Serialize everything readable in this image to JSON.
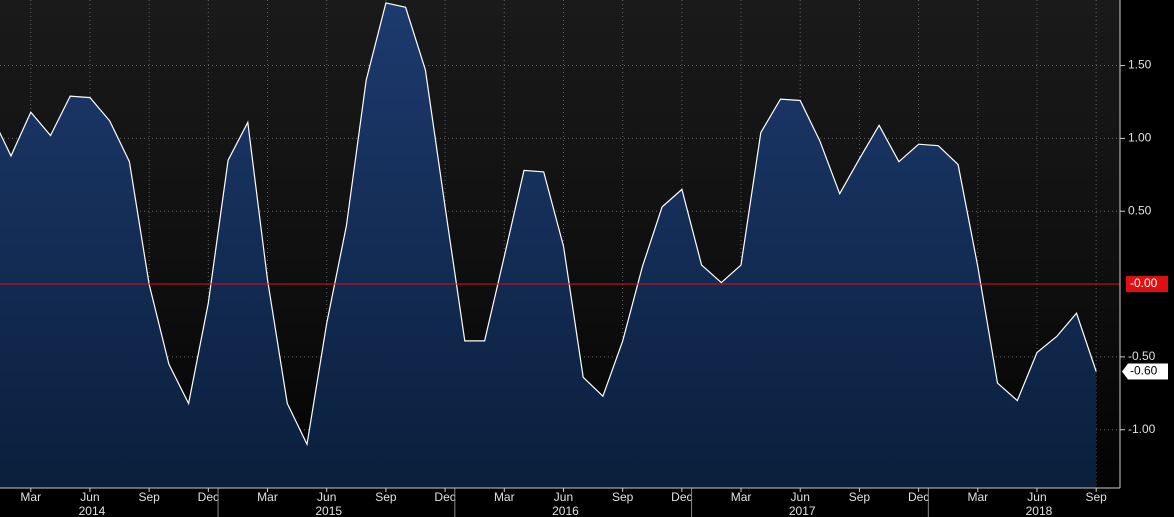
{
  "chart_data": {
    "type": "area",
    "categories": [
      null,
      null,
      "Mar",
      null,
      null,
      "Jun",
      null,
      null,
      "Sep",
      null,
      null,
      "Dec",
      null,
      null,
      "Mar",
      null,
      null,
      "Jun",
      null,
      null,
      "Sep",
      null,
      null,
      "Dec",
      null,
      null,
      "Mar",
      null,
      null,
      "Jun",
      null,
      null,
      "Sep",
      null,
      null,
      "Dec",
      null,
      null,
      "Mar",
      null,
      null,
      "Jun",
      null,
      null,
      "Sep",
      null,
      null,
      "Dec",
      null,
      null,
      "Mar",
      null,
      null,
      "Jun",
      null,
      null,
      "Sep"
    ],
    "years": [
      "2014",
      "2015",
      "2016",
      "2017",
      "2018"
    ],
    "values": [
      1.16,
      0.88,
      1.18,
      1.02,
      1.29,
      1.28,
      1.12,
      0.84,
      0.0,
      -0.55,
      -0.82,
      -0.13,
      0.85,
      1.11,
      0.03,
      -0.82,
      -1.1,
      -0.27,
      0.4,
      1.4,
      1.93,
      1.9,
      1.47,
      0.53,
      -0.39,
      -0.39,
      0.19,
      0.78,
      0.77,
      0.26,
      -0.64,
      -0.77,
      -0.39,
      0.12,
      0.53,
      0.65,
      0.13,
      0.01,
      0.13,
      1.04,
      1.27,
      1.26,
      0.98,
      0.62,
      0.86,
      1.09,
      0.84,
      0.96,
      0.95,
      0.82,
      0.12,
      -0.68,
      -0.8,
      -0.47,
      -0.36,
      -0.2,
      -0.6
    ],
    "value_labels": [
      null,
      null,
      null,
      null,
      null,
      null,
      null,
      null,
      null,
      null,
      null,
      null,
      null,
      null,
      null,
      null,
      null,
      null,
      null,
      null,
      null,
      null,
      null,
      null,
      null,
      null,
      null,
      null,
      null,
      null,
      null,
      null,
      null,
      null,
      null,
      null,
      null,
      null,
      null,
      null,
      null,
      null,
      null,
      null,
      null,
      null,
      null,
      null,
      null,
      null,
      null,
      null,
      null,
      null,
      null,
      null,
      "-0.60"
    ],
    "color": "#ffffff",
    "reference_line": {
      "value": 0,
      "label": "-0.00",
      "color": "#e01010"
    },
    "ylim": [
      -1.4,
      1.95
    ],
    "yticks": [
      {
        "value": -1,
        "label": "-1.00"
      },
      {
        "value": -0.5,
        "label": "-0.50"
      },
      {
        "value": 0.5,
        "label": "0.50"
      },
      {
        "value": 1,
        "label": "1.00"
      },
      {
        "value": 1.5,
        "label": "1.50"
      }
    ],
    "grid": true
  }
}
